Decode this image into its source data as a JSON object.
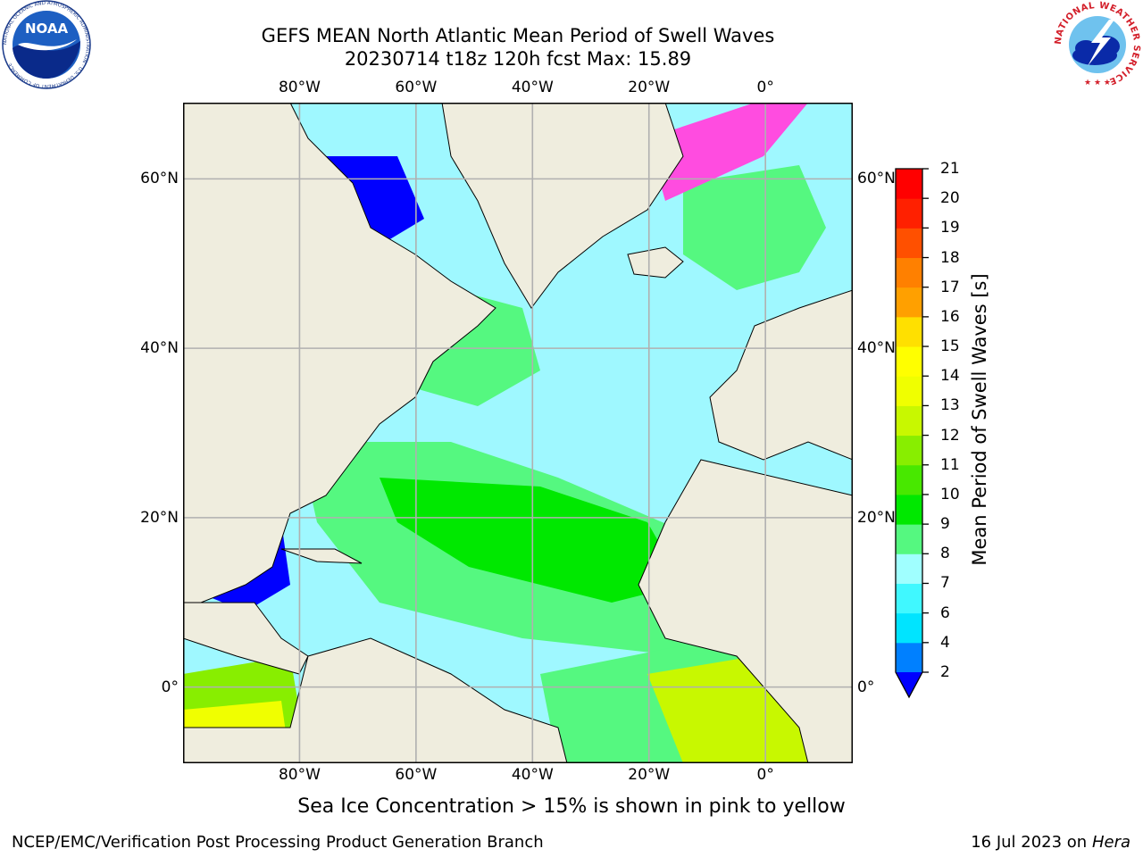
{
  "header": {
    "title_line1": "GEFS MEAN North Atlantic Mean Period of Swell Waves",
    "title_line2": "20230714 t18z 120h fcst   Max: 15.89"
  },
  "logos": {
    "left": {
      "name": "noaa-logo",
      "text": "NOAA",
      "ring_text": "NATIONAL OCEANIC AND ATMOSPHERIC ADMINISTRATION · U.S. DEPARTMENT OF COMMERCE"
    },
    "right": {
      "name": "nws-logo",
      "ring_text": "NATIONAL WEATHER SERVICE"
    }
  },
  "map": {
    "lon_range": [
      -100,
      15
    ],
    "lat_range": [
      -9,
      69
    ],
    "ocean_color": "#9ff8ff",
    "land_color": "#efedde",
    "grid_color": "#b0b0b0",
    "lon_ticks": [
      "80°W",
      "60°W",
      "40°W",
      "20°W",
      "0°"
    ],
    "lat_ticks": [
      "60°N",
      "40°N",
      "20°N",
      "0°"
    ]
  },
  "colorbar": {
    "label": "Mean Period of Swell Waves [s]",
    "ticks": [
      "2",
      "4",
      "6",
      "7",
      "8",
      "9",
      "10",
      "11",
      "12",
      "13",
      "14",
      "15",
      "16",
      "17",
      "18",
      "19",
      "20",
      "21"
    ],
    "colors": [
      "#0000ff",
      "#0080ff",
      "#00e4ff",
      "#40f8ff",
      "#a0ffff",
      "#55f880",
      "#00e800",
      "#48e800",
      "#88ee00",
      "#c8f800",
      "#f0ff00",
      "#ffff00",
      "#ffe000",
      "#ffa000",
      "#ff8000",
      "#ff5000",
      "#ff2000",
      "#ff0000"
    ]
  },
  "note": "Sea Ice Concentration > 15% is shown in pink to yellow",
  "footer": {
    "left": "NCEP/EMC/Verification Post Processing Product Generation Branch",
    "date": "16 Jul 2023 on ",
    "host": "Hera"
  }
}
